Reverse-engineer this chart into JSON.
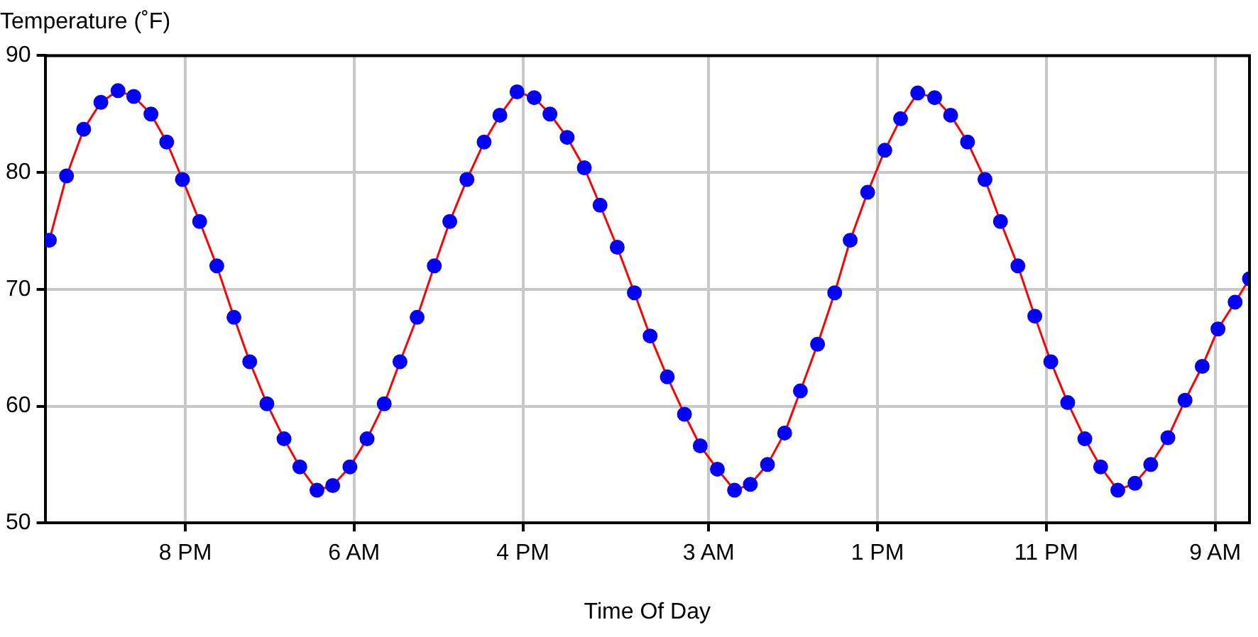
{
  "chart_data": {
    "type": "line",
    "ylabel": "Temperature (˚F)",
    "xlabel": "Time Of Day",
    "x": [
      "--01-01T11:57",
      "--01-01T12:58",
      "--01-01T13:59",
      "--01-01T15:00",
      "--01-01T16:01",
      "--01-01T16:57",
      "--01-01T17:58",
      "--01-01T18:54",
      "--01-01T19:50",
      "--01-01T20:51",
      "--01-01T21:52",
      "--01-01T22:53",
      "--01-01T23:49",
      "--01-02T00:50",
      "--01-02T01:51",
      "--01-02T02:47",
      "--01-02T03:48",
      "--01-02T04:44",
      "--01-02T05:45",
      "--01-02T06:46",
      "--01-02T07:47",
      "--01-02T08:43",
      "--01-02T09:44",
      "--01-02T10:45",
      "--01-02T11:40",
      "--01-02T12:41",
      "--01-02T13:42",
      "--01-02T14:38",
      "--01-02T15:39",
      "--01-02T16:40",
      "--01-02T17:36",
      "--01-02T18:37",
      "--01-02T19:38",
      "--01-02T20:34",
      "--01-02T21:35",
      "--01-02T22:36",
      "--01-02T23:32",
      "--01-03T00:33",
      "--01-03T01:34",
      "--01-03T02:30",
      "--01-03T03:31",
      "--01-03T04:32",
      "--01-03T05:28",
      "--01-03T06:29",
      "--01-03T07:30",
      "--01-03T08:26",
      "--01-03T09:27",
      "--01-03T10:28",
      "--01-03T11:23",
      "--01-03T12:25",
      "--01-03T13:26",
      "--01-03T14:22",
      "--01-03T15:23",
      "--01-03T16:23",
      "--01-03T17:20",
      "--01-03T18:20",
      "--01-03T19:22",
      "--01-03T20:17",
      "--01-03T21:19",
      "--01-03T22:19",
      "--01-03T23:16",
      "--01-04T00:16",
      "--01-04T01:17",
      "--01-04T02:13",
      "--01-04T03:14",
      "--01-04T04:15",
      "--01-04T05:11",
      "--01-04T06:12",
      "--01-04T07:13",
      "--01-04T08:14",
      "--01-04T09:10",
      "--01-04T10:11",
      "--01-04T11:02"
    ],
    "series": [
      {
        "color": "#ff0000",
        "colors": [
          "#0000ff",
          "#0000ff",
          "#0000ff",
          "#0000ff",
          "#0000ff",
          "#0000ff",
          "#0000ff",
          "#0000ff",
          "#0000ff",
          "#0000ff",
          "#0000ff",
          "#0000ff",
          "#0000ff",
          "#0000ff",
          "#0000ff",
          "#0000ff",
          "#0000ff",
          "#0000ff",
          "#0000ff",
          "#0000ff",
          "#0000ff",
          "#0000ff",
          "#0000ff",
          "#0000ff",
          "#0000ff",
          "#0000ff",
          "#0000ff",
          "#0000ff",
          "#0000ff",
          "#0000ff",
          "#0000ff",
          "#0000ff",
          "#0000ff",
          "#0000ff",
          "#0000ff",
          "#0000ff",
          "#0000ff",
          "#0000ff",
          "#0000ff",
          "#0000ff",
          "#0000ff",
          "#0000ff",
          "#0000ff",
          "#0000ff",
          "#0000ff",
          "#0000ff",
          "#0000ff",
          "#0000ff",
          "#0000ff",
          "#0000ff",
          "#0000ff",
          "#0000ff",
          "#0000ff",
          "#0000ff",
          "#0000ff",
          "#0000ff",
          "#0000ff",
          "#0000ff",
          "#0000ff",
          "#0000ff",
          "#0000ff",
          "#0000ff",
          "#0000ff",
          "#0000ff",
          "#0000ff",
          "#0000ff",
          "#0000ff",
          "#0000ff",
          "#0000ff",
          "#0000ff",
          "#0000ff",
          "#0000ff",
          "#0000ff"
        ],
        "values": [
          74.2,
          79.7,
          83.7,
          86.0,
          87.0,
          86.5,
          85.0,
          82.6,
          79.4,
          75.8,
          72.0,
          67.6,
          63.8,
          60.2,
          57.2,
          54.8,
          52.8,
          53.2,
          54.8,
          57.2,
          60.2,
          63.8,
          67.6,
          72.0,
          75.8,
          79.4,
          82.6,
          84.9,
          86.9,
          86.4,
          85.0,
          83.0,
          80.4,
          77.2,
          73.6,
          69.7,
          66.0,
          62.5,
          59.3,
          56.6,
          54.6,
          52.8,
          53.3,
          55.0,
          57.7,
          61.3,
          65.3,
          69.7,
          74.2,
          78.3,
          81.9,
          84.6,
          86.8,
          86.4,
          84.9,
          82.6,
          79.4,
          75.8,
          72.0,
          67.7,
          63.8,
          60.3,
          57.2,
          54.8,
          52.8,
          53.4,
          55.0,
          57.3,
          60.5,
          63.4,
          66.6,
          68.9,
          70.9
        ]
      }
    ],
    "xlim": [
      "--01-01T11:42",
      "--01-04T11:02"
    ],
    "xticks": [
      {
        "value": "--01-01T20:00",
        "label": "8 PM"
      },
      {
        "value": "--01-02T06:00",
        "label": "6 AM"
      },
      {
        "value": "--01-02T16:00",
        "label": "4 PM"
      },
      {
        "value": "--01-03T03:00",
        "label": "3 AM"
      },
      {
        "value": "--01-03T13:00",
        "label": "1 PM"
      },
      {
        "value": "--01-03T23:00",
        "label": "11 PM"
      },
      {
        "value": "--01-04T09:00",
        "label": "9 AM"
      }
    ],
    "ylim": [
      50,
      90
    ],
    "yticks": [
      50,
      60,
      70,
      80,
      90
    ],
    "grid": true,
    "legend": false,
    "marker": "circle",
    "line_style": "solid"
  }
}
